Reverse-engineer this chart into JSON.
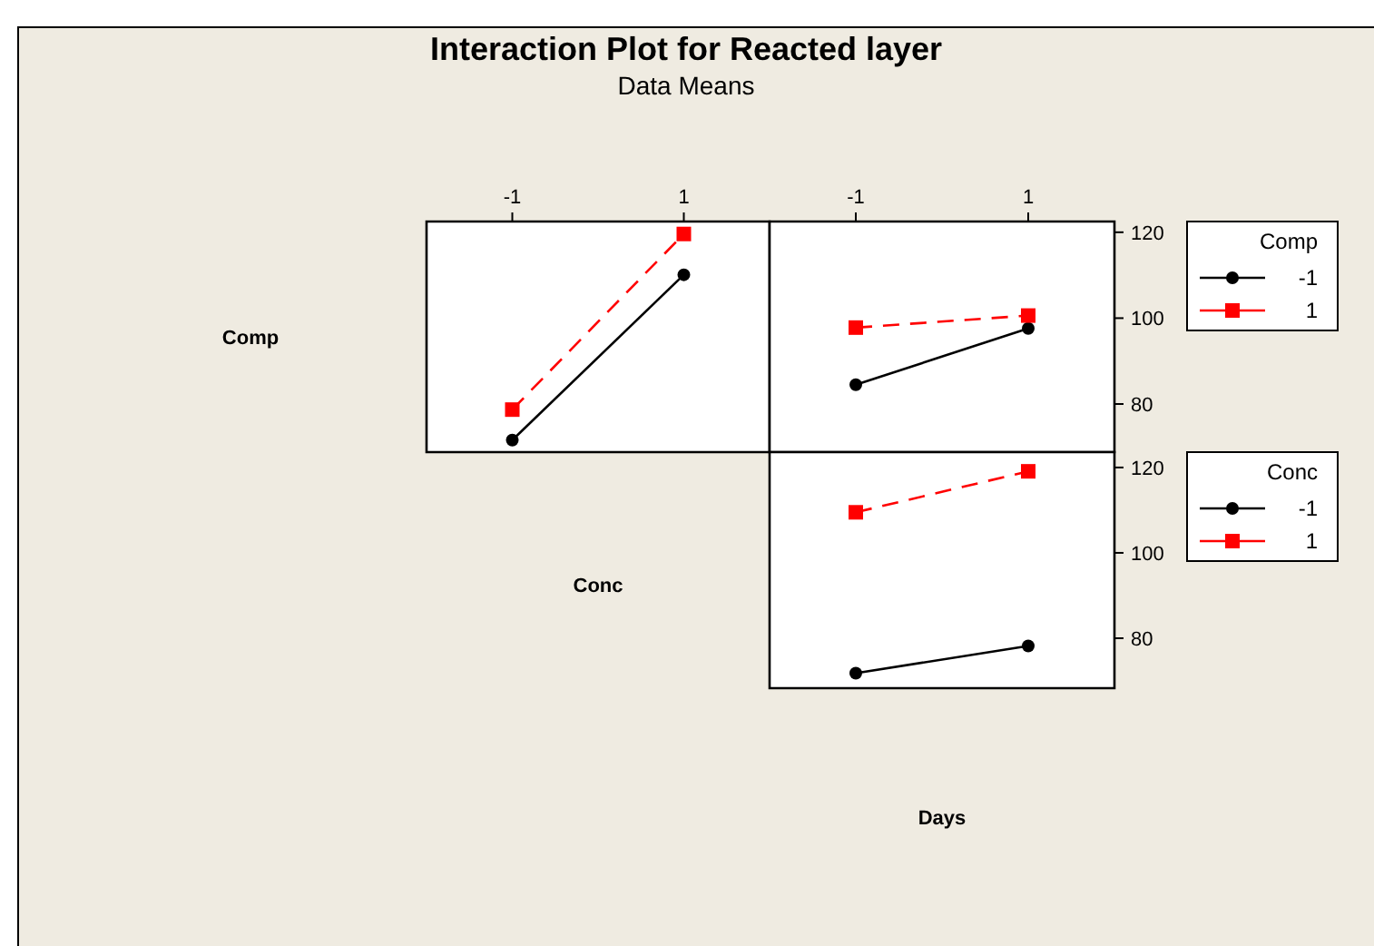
{
  "chart_data": [
    {
      "type": "line",
      "title": "Interaction Plot for Reacted layer",
      "subtitle": "Data Means",
      "ylabel": "Comp",
      "xlabel": "Conc",
      "categories": [
        "-1",
        "1"
      ],
      "ylim": [
        68.8,
        122.5
      ],
      "tick_labels": "x",
      "legend": false,
      "series": [
        {
          "color": "#000000",
          "marker": "circle",
          "line_style": "solid",
          "values": [
            71.6,
            110.1
          ]
        },
        {
          "color": "#ff0000",
          "marker": "square",
          "line_style": "dashed",
          "values": [
            78.7,
            119.6
          ]
        }
      ]
    },
    {
      "type": "line",
      "categories": [
        "-1",
        "1"
      ],
      "ylim": [
        68.8,
        122.5
      ],
      "yticks": [
        80,
        100,
        120
      ],
      "legend": "right",
      "legend_title": "Comp",
      "series": [
        {
          "name": "-1",
          "color": "#000000",
          "marker": "circle",
          "line_style": "solid",
          "values": [
            84.5,
            97.6
          ]
        },
        {
          "name": "1",
          "color": "#ff0000",
          "marker": "square",
          "line_style": "dashed",
          "values": [
            97.8,
            100.6
          ]
        }
      ]
    },
    {
      "type": "line",
      "xlabel": "Days",
      "categories": [
        null,
        null
      ],
      "ylim": [
        68.3,
        123.6
      ],
      "yticks": [
        80,
        100,
        120
      ],
      "tick_labels": "y",
      "legend": "right",
      "legend_title": "Conc",
      "series": [
        {
          "name": "-1",
          "color": "#000000",
          "marker": "circle",
          "line_style": "solid",
          "values": [
            71.8,
            78.2
          ]
        },
        {
          "name": "1",
          "color": "#ff0000",
          "marker": "square",
          "line_style": "dashed",
          "values": [
            109.5,
            119.1
          ]
        }
      ]
    }
  ]
}
